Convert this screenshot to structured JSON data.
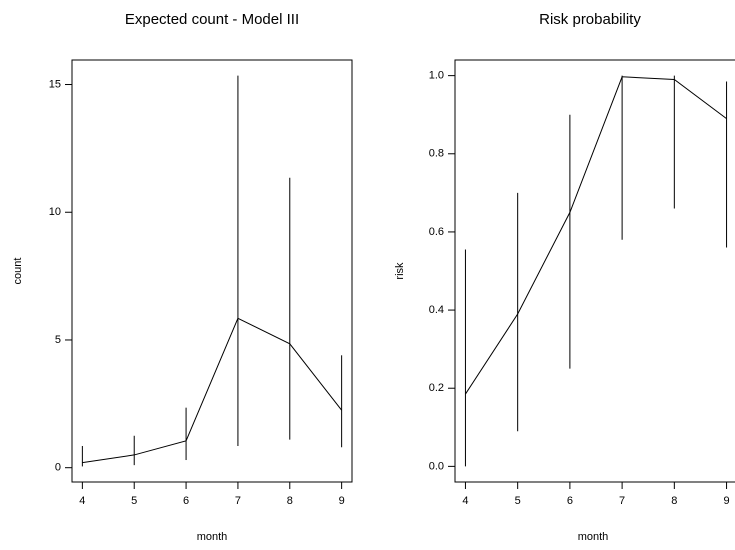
{
  "chart_data": [
    {
      "type": "line",
      "title": "Expected count - Model III",
      "xlabel": "month",
      "ylabel": "count",
      "x": [
        4,
        5,
        6,
        7,
        8,
        9
      ],
      "values": [
        0.2,
        0.5,
        1.05,
        5.85,
        4.85,
        2.25
      ],
      "lower": [
        0.05,
        0.1,
        0.3,
        0.85,
        1.1,
        0.8
      ],
      "upper": [
        0.85,
        1.25,
        2.35,
        15.35,
        11.35,
        4.4
      ],
      "color": "#000000",
      "xlim": [
        3.8,
        9.2
      ],
      "xticks": [
        4,
        5,
        6,
        7,
        8,
        9
      ],
      "ylim": [
        -0.56,
        15.96
      ],
      "yticks": [
        0,
        5,
        10,
        15
      ]
    },
    {
      "type": "line",
      "title": "Risk probability",
      "xlabel": "month",
      "ylabel": "risk",
      "x": [
        4,
        5,
        6,
        7,
        8,
        9
      ],
      "values": [
        0.185,
        0.39,
        0.65,
        0.997,
        0.99,
        0.89
      ],
      "lower": [
        0.0,
        0.09,
        0.25,
        0.58,
        0.66,
        0.56
      ],
      "upper": [
        0.555,
        0.7,
        0.9,
        1.0,
        1.0,
        0.985
      ],
      "color": "#000000",
      "xlim": [
        3.8,
        9.2
      ],
      "xticks": [
        4,
        5,
        6,
        7,
        8,
        9
      ],
      "ylim": [
        -0.04,
        1.04
      ],
      "yticks": [
        {
          "value": 0,
          "label": "0.0"
        },
        {
          "value": 0.2,
          "label": "0.2"
        },
        {
          "value": 0.4,
          "label": "0.4"
        },
        {
          "value": 0.6,
          "label": "0.6"
        },
        {
          "value": 0.8,
          "label": "0.8"
        },
        {
          "value": 1,
          "label": "1.0"
        }
      ]
    }
  ]
}
